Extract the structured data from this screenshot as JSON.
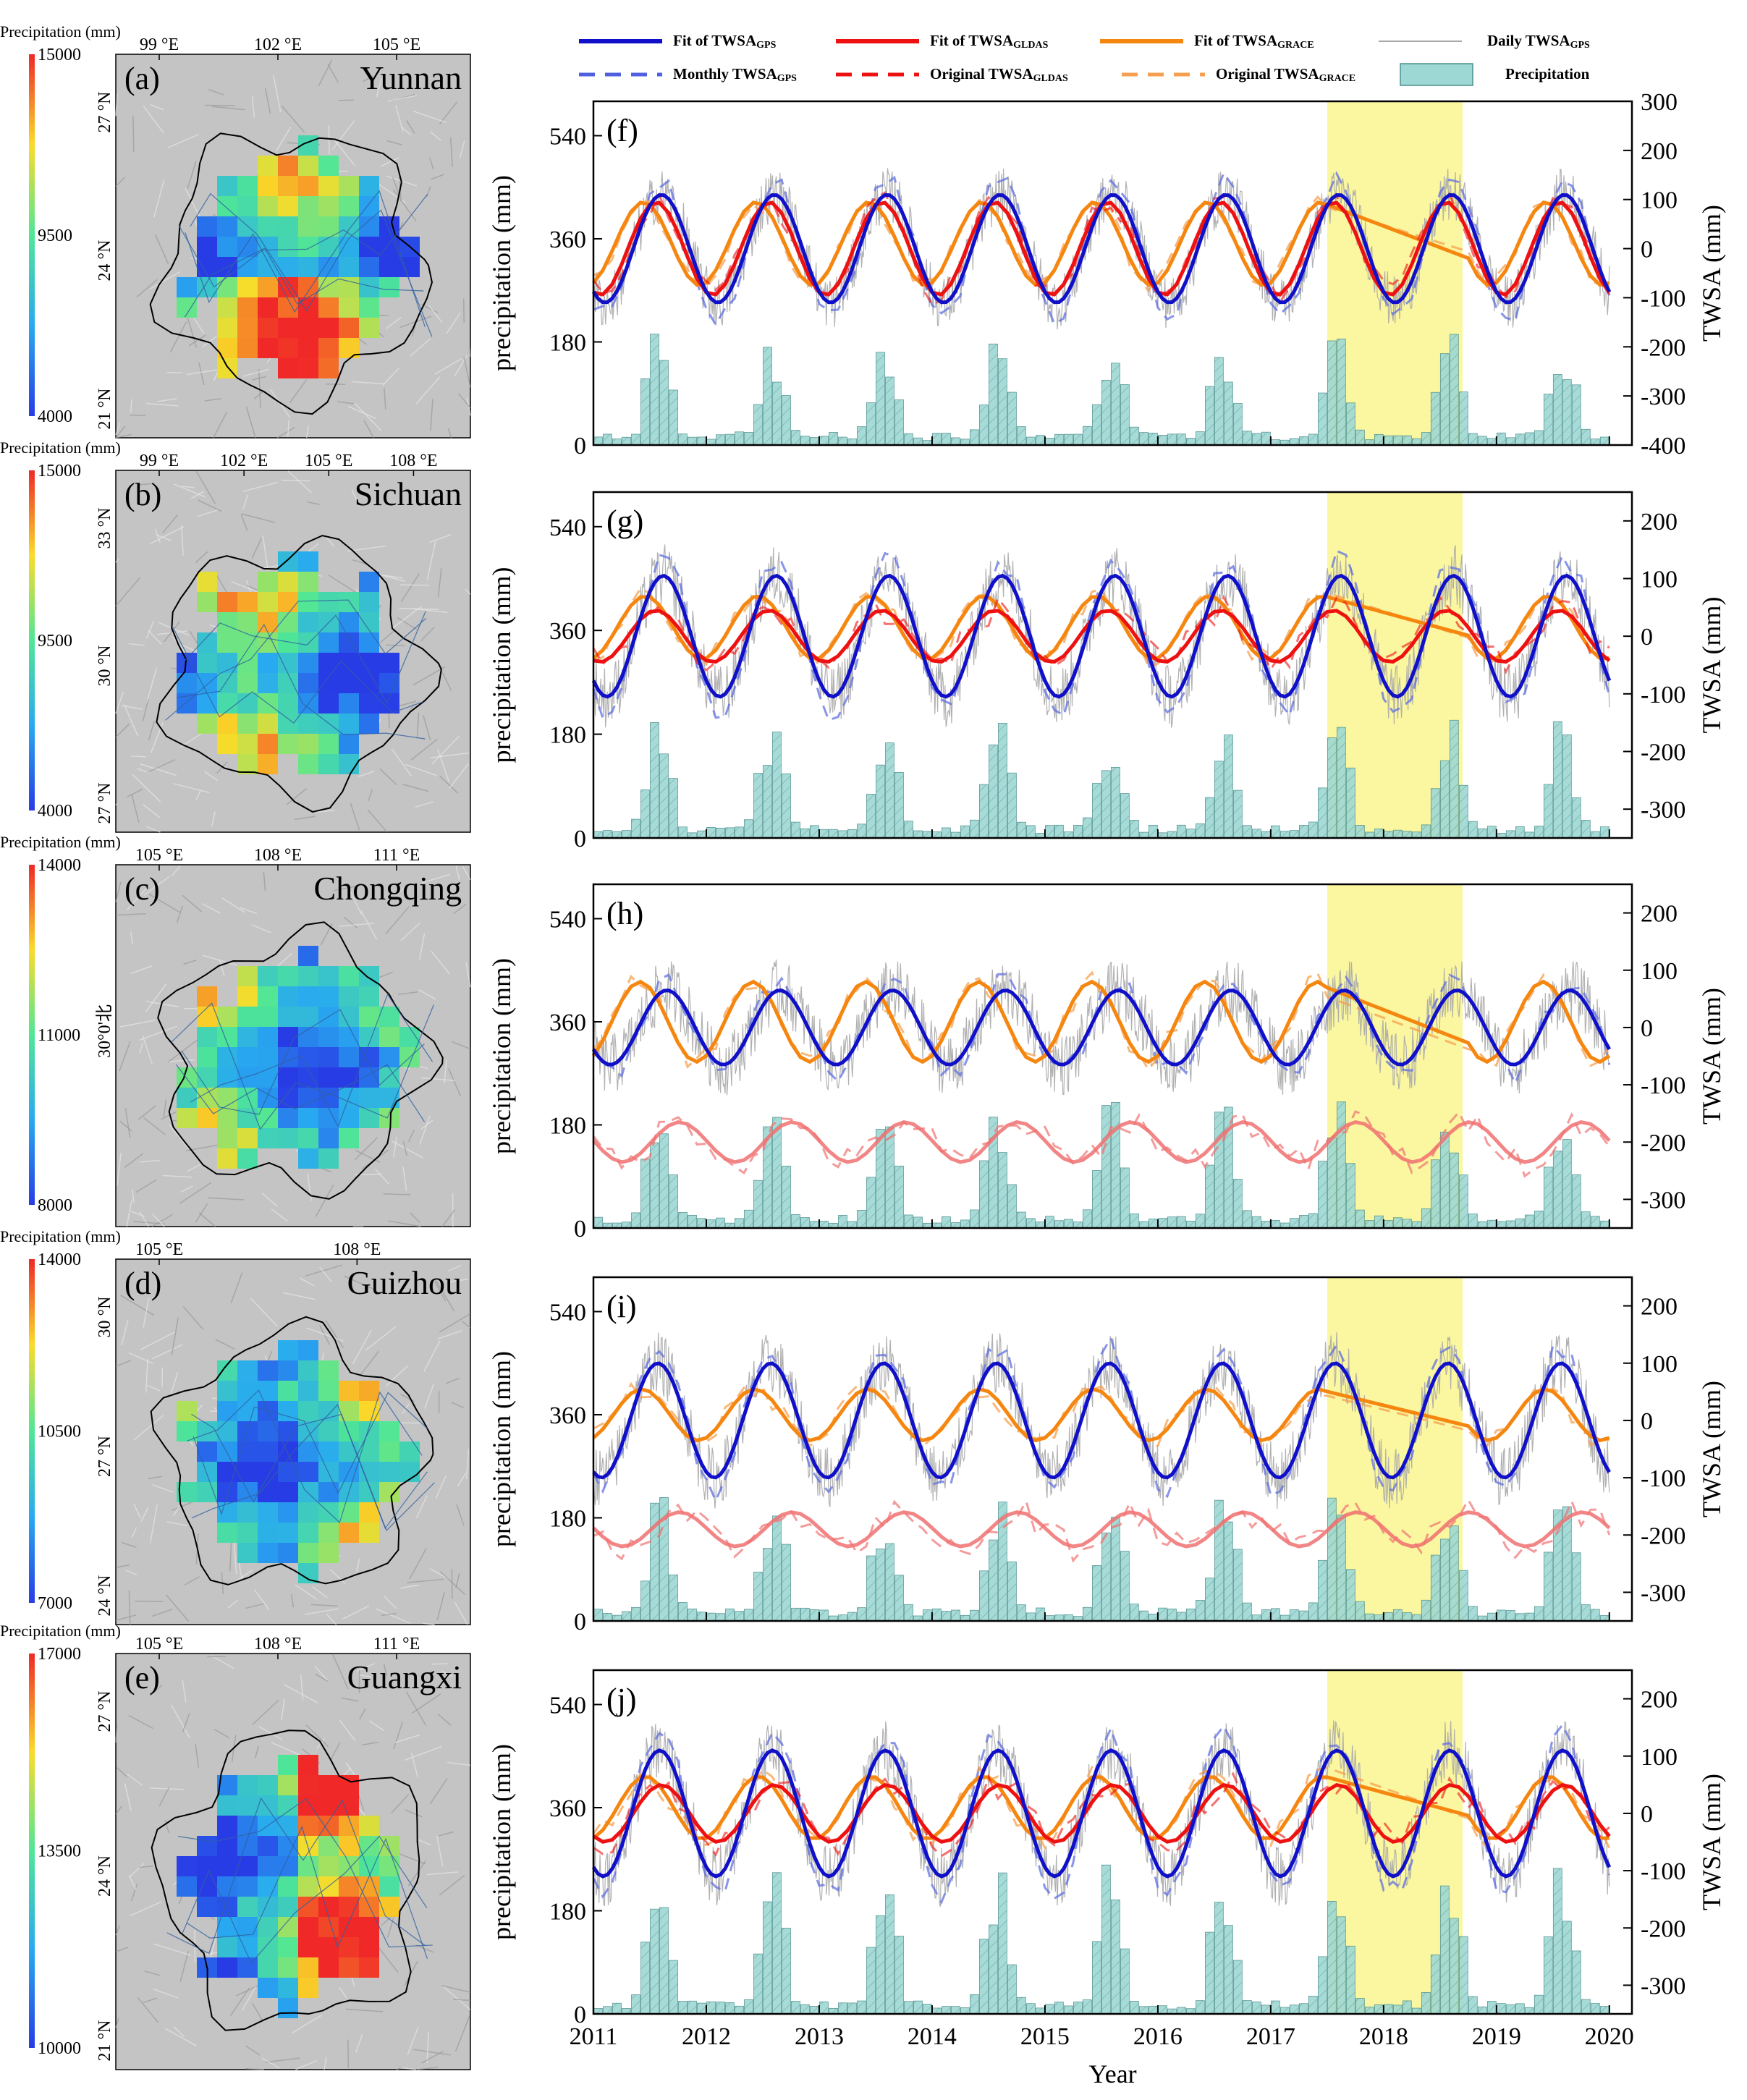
{
  "legend": {
    "fit_gps": "Fit of TWSA",
    "fit_gps_sub": "GPS",
    "fit_gldas": "Fit of TWSA",
    "fit_gldas_sub": "GLDAS",
    "fit_grace": "Fit of TWSA",
    "fit_grace_sub": "GRACE",
    "daily_gps": "Daily TWSA",
    "daily_gps_sub": "GPS",
    "monthly_gps": "Monthly TWSA",
    "monthly_gps_sub": "GPS",
    "orig_gldas": "Original TWSA",
    "orig_gldas_sub": "GLDAS",
    "orig_grace": "Original TWSA",
    "orig_grace_sub": "GRACE",
    "precip": "Precipitation"
  },
  "colors": {
    "gps": "#1010c8",
    "gldas": "#ee1111",
    "grace": "#f5860f",
    "daily": "#a8a8a8",
    "bar": "#9ed8d4",
    "highlight": "#fbf7a0",
    "map_bg": "#c4c4c4"
  },
  "map_panels": [
    {
      "letter": "(a)",
      "region": "Yunnan",
      "cbar_title": "Precipitation (mm)",
      "cbar_max": "15000",
      "cbar_mid": "9500",
      "cbar_min": "4000",
      "lon_ticks": [
        "99 °E",
        "102 °E",
        "105 °E"
      ],
      "lat_ticks": [
        "27 °N",
        "24 °N",
        "21 °N"
      ]
    },
    {
      "letter": "(b)",
      "region": "Sichuan",
      "cbar_title": "Precipitation (mm)",
      "cbar_max": "15000",
      "cbar_mid": "9500",
      "cbar_min": "4000",
      "lon_ticks": [
        "99 °E",
        "102 °E",
        "105 °E",
        "108 °E"
      ],
      "lat_ticks": [
        "33 °N",
        "30 °N",
        "27 °N"
      ]
    },
    {
      "letter": "(c)",
      "region": "Chongqing",
      "cbar_title": "Precipitation (mm)",
      "cbar_max": "14000",
      "cbar_mid": "11000",
      "cbar_min": "8000",
      "lon_ticks": [
        "105 °E",
        "108 °E",
        "111 °E"
      ],
      "lat_ticks": [
        "30°0'北"
      ]
    },
    {
      "letter": "(d)",
      "region": "Guizhou",
      "cbar_title": "Precipitation (mm)",
      "cbar_max": "14000",
      "cbar_mid": "10500",
      "cbar_min": "7000",
      "lon_ticks": [
        "105 °E",
        "108 °E"
      ],
      "lat_ticks": [
        "30 °N",
        "27 °N",
        "24 °N"
      ]
    },
    {
      "letter": "(e)",
      "region": "Guangxi",
      "cbar_title": "Precipitation (mm)",
      "cbar_max": "17000",
      "cbar_mid": "13500",
      "cbar_min": "10000",
      "lon_ticks": [
        "105 °E",
        "108 °E",
        "111 °E"
      ],
      "lat_ticks": [
        "27 °N",
        "24 °N",
        "21 °N"
      ]
    }
  ],
  "chart_data": [
    {
      "panel": "(f)",
      "region": "Yunnan",
      "type": "line",
      "ylabel_left": "precipitation (mm)",
      "ylabel_right": "TWSA (mm)",
      "left_ticks": [
        0,
        180,
        360,
        540
      ],
      "left_lim": [
        0,
        600
      ],
      "right_ticks": [
        -400,
        -300,
        -200,
        -100,
        0,
        100,
        200,
        300
      ],
      "right_lim": [
        -400,
        300
      ],
      "gps": {
        "mean": 0,
        "amp": 110,
        "phase": 8.5
      },
      "gldas": {
        "mean": 0,
        "amp": 95,
        "phase": 8.2,
        "offset": 0
      },
      "grace": {
        "mean": 10,
        "amp": 85,
        "phase": 7.5
      },
      "precip": {
        "scale": 150
      }
    },
    {
      "panel": "(g)",
      "region": "Sichuan",
      "type": "line",
      "ylabel_left": "precipitation (mm)",
      "ylabel_right": "TWSA (mm)",
      "left_ticks": [
        0,
        180,
        360,
        540
      ],
      "left_lim": [
        0,
        600
      ],
      "right_ticks": [
        -300,
        -200,
        -100,
        0,
        100,
        200
      ],
      "right_lim": [
        -350,
        250
      ],
      "gps": {
        "mean": 0,
        "amp": 105,
        "phase": 8.6
      },
      "gldas": {
        "mean": 0,
        "amp": 45,
        "phase": 8.2,
        "offset": 0
      },
      "grace": {
        "mean": 15,
        "amp": 55,
        "phase": 7.6
      },
      "precip": {
        "scale": 160
      }
    },
    {
      "panel": "(h)",
      "region": "Chongqing",
      "type": "line",
      "ylabel_left": "precipitation (mm)",
      "ylabel_right": "TWSA (mm)",
      "left_ticks": [
        0,
        180,
        360,
        540
      ],
      "left_lim": [
        0,
        600
      ],
      "right_ticks": [
        -300,
        -200,
        -100,
        0,
        100,
        200
      ],
      "right_lim": [
        -350,
        250
      ],
      "gps": {
        "mean": 0,
        "amp": 65,
        "phase": 8.8
      },
      "gldas": {
        "mean": -200,
        "amp": 35,
        "phase": 9.5,
        "offset": 0
      },
      "grace": {
        "mean": 10,
        "amp": 70,
        "phase": 7.3
      },
      "precip": {
        "scale": 170
      }
    },
    {
      "panel": "(i)",
      "region": "Guizhou",
      "type": "line",
      "ylabel_left": "precipitation (mm)",
      "ylabel_right": "TWSA (mm)",
      "left_ticks": [
        0,
        180,
        360,
        540
      ],
      "left_lim": [
        0,
        600
      ],
      "right_ticks": [
        -300,
        -200,
        -100,
        0,
        100,
        200
      ],
      "right_lim": [
        -350,
        250
      ],
      "gps": {
        "mean": 0,
        "amp": 100,
        "phase": 8.3
      },
      "gldas": {
        "mean": -190,
        "amp": 30,
        "phase": 9.5,
        "offset": 0
      },
      "grace": {
        "mean": 10,
        "amp": 45,
        "phase": 7.4
      },
      "precip": {
        "scale": 175
      }
    },
    {
      "panel": "(j)",
      "region": "Guangxi",
      "type": "line",
      "ylabel_left": "precipitation (mm)",
      "ylabel_right": "TWSA (mm)",
      "left_ticks": [
        0,
        180,
        360,
        540
      ],
      "left_lim": [
        0,
        600
      ],
      "right_ticks": [
        -300,
        -200,
        -100,
        0,
        100,
        200
      ],
      "right_lim": [
        -350,
        250
      ],
      "gps": {
        "mean": 0,
        "amp": 110,
        "phase": 8.4
      },
      "gldas": {
        "mean": 0,
        "amp": 50,
        "phase": 8.5,
        "offset": 0
      },
      "grace": {
        "mean": 10,
        "amp": 55,
        "phase": 7.6
      },
      "precip": {
        "scale": 200
      }
    }
  ],
  "shared_x": {
    "xlim": [
      2011,
      2020.2
    ],
    "ticks": [
      "2011",
      "2012",
      "2013",
      "2014",
      "2015",
      "2016",
      "2017",
      "2018",
      "2019",
      "2020"
    ],
    "xlabel": "Year",
    "highlight_range": [
      2017.5,
      2018.7
    ]
  }
}
